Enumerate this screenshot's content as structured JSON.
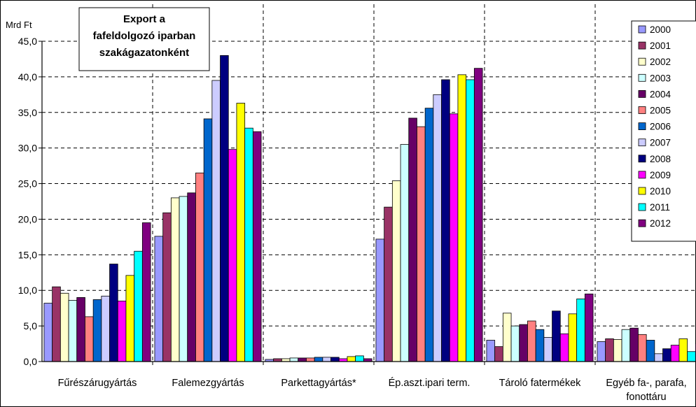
{
  "chart_data": {
    "type": "bar",
    "title": [
      "Export a",
      "fafeldolgozó iparban",
      "szakágazatonként"
    ],
    "ylabel": "Mrd Ft",
    "ylim": [
      0,
      45
    ],
    "ytick_labels": [
      "0,0",
      "5,0",
      "10,0",
      "15,0",
      "20,0",
      "25,0",
      "30,0",
      "35,0",
      "40,0",
      "45,0"
    ],
    "grid": true,
    "legend_position": "right",
    "categories": [
      [
        "Fűrészárugyártás"
      ],
      [
        "Falemezgyártás"
      ],
      [
        "Parkettagyártás*"
      ],
      [
        "Ép.aszt.ipari term."
      ],
      [
        "Tároló fatermékek"
      ],
      [
        "Egyéb fa-, parafa,",
        "fonottáru"
      ]
    ],
    "series": [
      {
        "name": "2000",
        "color": "#9999ff",
        "values": [
          8.2,
          17.6,
          0.3,
          17.2,
          3.0,
          2.8
        ]
      },
      {
        "name": "2001",
        "color": "#993366",
        "values": [
          10.5,
          20.9,
          0.4,
          21.7,
          2.1,
          3.2
        ]
      },
      {
        "name": "2002",
        "color": "#ffffcc",
        "values": [
          9.6,
          23.0,
          0.4,
          25.4,
          6.8,
          3.1
        ]
      },
      {
        "name": "2003",
        "color": "#ccffff",
        "values": [
          8.6,
          23.2,
          0.5,
          30.5,
          5.0,
          4.5
        ]
      },
      {
        "name": "2004",
        "color": "#660066",
        "values": [
          9.0,
          23.7,
          0.5,
          34.2,
          5.2,
          4.7
        ]
      },
      {
        "name": "2005",
        "color": "#ff8080",
        "values": [
          6.3,
          26.5,
          0.5,
          33.0,
          5.7,
          3.8
        ]
      },
      {
        "name": "2006",
        "color": "#0066cc",
        "values": [
          8.7,
          34.1,
          0.6,
          35.6,
          4.5,
          3.0
        ]
      },
      {
        "name": "2007",
        "color": "#ccccff",
        "values": [
          9.2,
          39.5,
          0.6,
          37.5,
          3.4,
          1.1
        ]
      },
      {
        "name": "2008",
        "color": "#000080",
        "values": [
          13.7,
          43.0,
          0.6,
          39.6,
          7.1,
          1.8
        ]
      },
      {
        "name": "2009",
        "color": "#ff00ff",
        "values": [
          8.5,
          29.8,
          0.4,
          34.8,
          3.9,
          2.3
        ]
      },
      {
        "name": "2010",
        "color": "#ffff00",
        "values": [
          12.1,
          36.3,
          0.7,
          40.3,
          6.7,
          3.2
        ]
      },
      {
        "name": "2011",
        "color": "#00ffff",
        "values": [
          15.5,
          32.8,
          0.8,
          39.6,
          8.8,
          1.4
        ]
      },
      {
        "name": "2012",
        "color": "#800080",
        "values": [
          19.5,
          32.3,
          0.4,
          41.2,
          9.5,
          2.5
        ]
      }
    ]
  }
}
